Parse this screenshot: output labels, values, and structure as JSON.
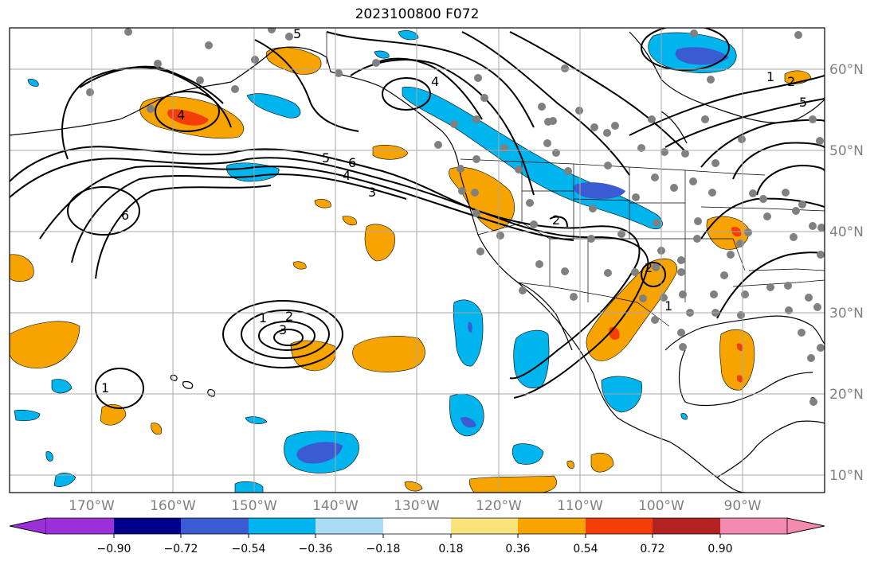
{
  "title": "2023100800 F072",
  "map": {
    "lon_labels": [
      "170°W",
      "160°W",
      "150°W",
      "140°W",
      "130°W",
      "120°W",
      "110°W",
      "100°W",
      "90°W"
    ],
    "lat_labels": [
      "60°N",
      "50°N",
      "40°N",
      "30°N",
      "20°N",
      "10°N"
    ],
    "contour_labels": [
      "1",
      "2",
      "3",
      "4",
      "5",
      "6"
    ]
  },
  "colorbar": {
    "ticks": [
      "−0.90",
      "−0.72",
      "−0.54",
      "−0.36",
      "−0.18",
      "0.18",
      "0.36",
      "0.54",
      "0.72",
      "0.90"
    ],
    "colors": [
      "#9b30d9",
      "#00008b",
      "#3a5bd1",
      "#00b4ee",
      "#aadcf5",
      "#ffffff",
      "#fbe37b",
      "#f8a400",
      "#f53d0a",
      "#b22222",
      "#f58ab0"
    ]
  },
  "colors": {
    "orange": "#f8a400",
    "red": "#f53d0a",
    "light_blue": "#00b4ee",
    "blue": "#3a5bd1",
    "station": "#808080"
  }
}
